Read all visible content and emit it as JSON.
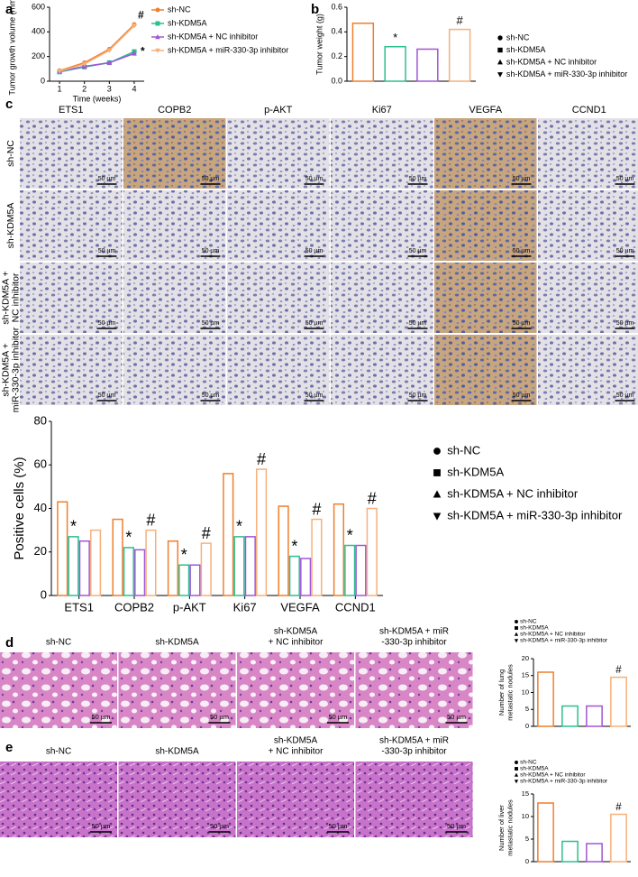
{
  "panel_labels": [
    "a",
    "b",
    "c",
    "d",
    "e"
  ],
  "ihc": {
    "markers": [
      "ETS1",
      "COPB2",
      "p-AKT",
      "Ki67",
      "VEGFA",
      "CCND1"
    ],
    "groups": [
      [
        "sh-NC"
      ],
      [
        "sh-KDM5A"
      ],
      [
        "sh-KDM5A +",
        "NC inhibitor"
      ],
      [
        "sh-KDM5A +",
        "miR-330-3p inhibitor"
      ]
    ],
    "scale_bar": "50 µm"
  },
  "histology": {
    "groups": [
      [
        "sh-NC"
      ],
      [
        "sh-KDM5A"
      ],
      [
        "sh-KDM5A",
        "+ NC inhibitor"
      ],
      [
        "sh-KDM5A + miR",
        "-330-3p inhibitor"
      ]
    ],
    "scale_bar": "50 µm"
  },
  "chart_data": [
    {
      "type": "line",
      "xlabel": "Time (weeks)",
      "ylabel": "Tumor growth volume (mm³)",
      "x": [
        1,
        2,
        3,
        4
      ],
      "xlim": [
        0.6,
        4.4
      ],
      "xticks": [
        1,
        2,
        3,
        4
      ],
      "ylim": [
        0,
        600
      ],
      "yticks": [
        0,
        200,
        400,
        600
      ],
      "legend": "right",
      "series": [
        {
          "name": "sh-NC",
          "color": "#ef7f2d",
          "marker": "circle",
          "values": [
            85,
            150,
            260,
            460
          ],
          "annotations": [
            null,
            null,
            null,
            "#"
          ]
        },
        {
          "name": "sh-KDM5A",
          "color": "#2bbf8f",
          "marker": "square",
          "values": [
            75,
            115,
            150,
            240
          ],
          "annotations": [
            null,
            null,
            null,
            "*"
          ]
        },
        {
          "name": "sh-KDM5A + NC inhibitor",
          "color": "#a056d6",
          "marker": "triangle-up",
          "values": [
            80,
            120,
            150,
            225
          ],
          "annotations": [
            null,
            null,
            null,
            null
          ]
        },
        {
          "name": "sh-KDM5A + miR-330-3p inhibitor",
          "color": "#f6b07a",
          "marker": "triangle-down",
          "values": [
            80,
            140,
            250,
            450
          ],
          "annotations": [
            null,
            null,
            null,
            null
          ]
        }
      ]
    },
    {
      "type": "bar",
      "ylabel": "Tumor weight (g)",
      "legend": "right",
      "categories": [
        "sh-NC",
        "sh-KDM5A",
        "sh-KDM5A + NC inhibitor",
        "sh-KDM5A + miR-330-3p inhibitor"
      ],
      "values": [
        0.47,
        0.28,
        0.26,
        0.42
      ],
      "annotations": [
        null,
        "*",
        null,
        "#"
      ],
      "colors": [
        "#ef7f2d",
        "#2bbf8f",
        "#a056d6",
        "#f6b07a"
      ],
      "markers": [
        "circle",
        "square",
        "triangle-up",
        "triangle-down"
      ],
      "ylim": [
        0,
        0.6
      ],
      "yticks": [
        {
          "value": 0,
          "label": "0.0"
        },
        0.2,
        0.4,
        0.6
      ]
    },
    {
      "type": "grouped-bar",
      "ylabel": "Positive cells (%)",
      "legend": "right",
      "categories": [
        "ETS1",
        "COPB2",
        "p-AKT",
        "Ki67",
        "VEGFA",
        "CCND1"
      ],
      "ylim": [
        0,
        80
      ],
      "yticks": [
        0,
        20,
        40,
        60,
        80
      ],
      "series": [
        {
          "name": "sh-NC",
          "color": "#ef7f2d",
          "marker": "circle",
          "values": [
            43,
            35,
            25,
            56,
            41,
            42
          ],
          "annotations": [
            null,
            null,
            null,
            null,
            null,
            null
          ]
        },
        {
          "name": "sh-KDM5A",
          "color": "#2bbf8f",
          "marker": "square",
          "values": [
            27,
            22,
            14,
            27,
            18,
            23
          ],
          "annotations": [
            "*",
            "*",
            "*",
            "*",
            "*",
            "*"
          ]
        },
        {
          "name": "sh-KDM5A + NC inhibitor",
          "color": "#a056d6",
          "marker": "triangle-up",
          "values": [
            25,
            21,
            14,
            27,
            17,
            23
          ],
          "annotations": [
            null,
            null,
            null,
            null,
            null,
            null
          ]
        },
        {
          "name": "sh-KDM5A + miR-330-3p inhibitor",
          "color": "#f6b07a",
          "marker": "triangle-down",
          "values": [
            30,
            30,
            24,
            58,
            35,
            40
          ],
          "annotations": [
            null,
            "#",
            "#",
            "#",
            "#",
            "#"
          ]
        }
      ]
    },
    {
      "type": "bar",
      "ylabel": [
        "Number of lung",
        "metastatic nodules"
      ],
      "legend": "top",
      "categories": [
        "sh-NC",
        "sh-KDM5A",
        "sh-KDM5A + NC inhibitor",
        "sh-KDM5A + miR-330-3p inhibitor"
      ],
      "values": [
        16,
        6,
        6,
        14.5
      ],
      "annotations": [
        null,
        null,
        null,
        "#"
      ],
      "colors": [
        "#ef7f2d",
        "#2bbf8f",
        "#a056d6",
        "#f6b07a"
      ],
      "markers": [
        "circle",
        "square",
        "triangle-up",
        "triangle-down"
      ],
      "ylim": [
        0,
        20
      ],
      "yticks": [
        0,
        5,
        10,
        15,
        20
      ]
    },
    {
      "type": "bar",
      "ylabel": [
        "Number of liver",
        "metastatic nodules"
      ],
      "legend": "top",
      "categories": [
        "sh-NC",
        "sh-KDM5A",
        "sh-KDM5A + NC inhibitor",
        "sh-KDM5A + miR-330-3p inhibitor"
      ],
      "values": [
        13,
        4.5,
        4,
        10.5
      ],
      "annotations": [
        null,
        null,
        null,
        "#"
      ],
      "colors": [
        "#ef7f2d",
        "#2bbf8f",
        "#a056d6",
        "#f6b07a"
      ],
      "markers": [
        "circle",
        "square",
        "triangle-up",
        "triangle-down"
      ],
      "ylim": [
        0,
        15
      ],
      "yticks": [
        0,
        5,
        10,
        15
      ]
    }
  ]
}
